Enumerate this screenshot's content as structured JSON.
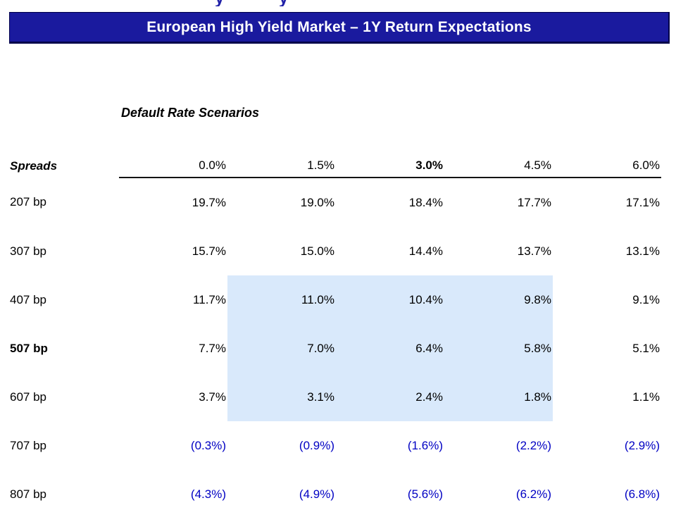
{
  "colors": {
    "navy_bar": "#1A1A9E",
    "bar_border": "#00004A",
    "title_text": "#FFFFFF",
    "highlight": "#D9E9FB",
    "negative": "#0000C3",
    "cropped_glyph": "#2121A8"
  },
  "top_cropped_glyphs": [
    "y",
    "y"
  ],
  "title_bar": {
    "text": "European High Yield Market – 1Y Return Expectations"
  },
  "table": {
    "section_label": "Default Rate Scenarios",
    "corner_label": "Spreads",
    "columns": [
      "0.0%",
      "1.5%",
      "3.0%",
      "4.5%",
      "6.0%"
    ],
    "bold_column_index": 2,
    "highlight_columns": [
      1,
      2,
      3
    ],
    "rows": [
      {
        "label": "207 bp",
        "bold": false,
        "negative": false,
        "highlight": false,
        "values": [
          "19.7%",
          "19.0%",
          "18.4%",
          "17.7%",
          "17.1%"
        ]
      },
      {
        "label": "307 bp",
        "bold": false,
        "negative": false,
        "highlight": false,
        "values": [
          "15.7%",
          "15.0%",
          "14.4%",
          "13.7%",
          "13.1%"
        ]
      },
      {
        "label": "407 bp",
        "bold": false,
        "negative": false,
        "highlight": true,
        "values": [
          "11.7%",
          "11.0%",
          "10.4%",
          "9.8%",
          "9.1%"
        ]
      },
      {
        "label": "507 bp",
        "bold": true,
        "negative": false,
        "highlight": true,
        "values": [
          "7.7%",
          "7.0%",
          "6.4%",
          "5.8%",
          "5.1%"
        ]
      },
      {
        "label": "607 bp",
        "bold": false,
        "negative": false,
        "highlight": true,
        "values": [
          "3.7%",
          "3.1%",
          "2.4%",
          "1.8%",
          "1.1%"
        ]
      },
      {
        "label": "707 bp",
        "bold": false,
        "negative": true,
        "highlight": false,
        "values": [
          "(0.3%)",
          "(0.9%)",
          "(1.6%)",
          "(2.2%)",
          "(2.9%)"
        ]
      },
      {
        "label": "807 bp",
        "bold": false,
        "negative": true,
        "highlight": false,
        "values": [
          "(4.3%)",
          "(4.9%)",
          "(5.6%)",
          "(6.2%)",
          "(6.8%)"
        ]
      }
    ]
  }
}
